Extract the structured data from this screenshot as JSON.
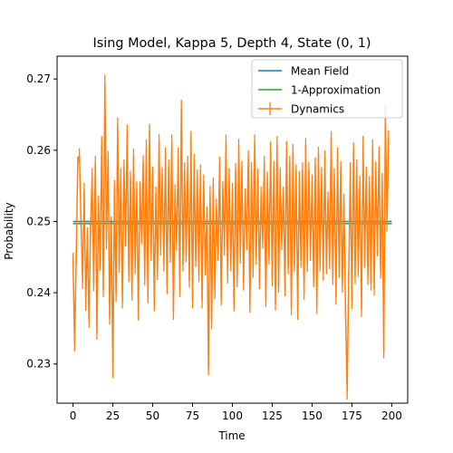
{
  "chart_data": {
    "type": "line",
    "title": "Ising Model, Kappa 5, Depth 4, State (0, 1)",
    "xlabel": "Time",
    "ylabel": "Probability",
    "xlim": [
      -10,
      210
    ],
    "ylim": [
      0.2245,
      0.2732
    ],
    "xticks": [
      0,
      25,
      50,
      75,
      100,
      125,
      150,
      175,
      200
    ],
    "yticks": [
      0.23,
      0.24,
      0.25,
      0.26,
      0.27
    ],
    "yticks_labels": [
      "0.23",
      "0.24",
      "0.25",
      "0.26",
      "0.27"
    ],
    "grid": false,
    "legend_position": "top-right",
    "series": [
      {
        "name": "Mean Field",
        "type": "line",
        "color": "#1f77b4",
        "x": [
          0,
          200
        ],
        "y": [
          0.25,
          0.25
        ]
      },
      {
        "name": "1-Approximation",
        "type": "line",
        "color": "#2ca02c",
        "x": [
          0,
          200
        ],
        "y": [
          0.2497,
          0.2497
        ]
      },
      {
        "name": "Dynamics",
        "type": "errorbar",
        "color": "#ff7f0e",
        "x_start": 0,
        "x_step": 1,
        "err": 0.001,
        "y": [
          0.2446,
          0.2328,
          0.2449,
          0.2581,
          0.2593,
          0.2503,
          0.2415,
          0.2544,
          0.2385,
          0.2482,
          0.2361,
          0.2488,
          0.2565,
          0.2412,
          0.2582,
          0.2344,
          0.2526,
          0.2441,
          0.261,
          0.2404,
          0.2696,
          0.2471,
          0.2589,
          0.2365,
          0.2497,
          0.229,
          0.2548,
          0.2397,
          0.2636,
          0.2438,
          0.2565,
          0.2388,
          0.2577,
          0.2475,
          0.2626,
          0.2425,
          0.2561,
          0.2399,
          0.2592,
          0.2436,
          0.2546,
          0.2371,
          0.2546,
          0.2478,
          0.2583,
          0.242,
          0.2605,
          0.2395,
          0.2627,
          0.2455,
          0.2567,
          0.2384,
          0.2539,
          0.2428,
          0.2613,
          0.2462,
          0.2566,
          0.244,
          0.2594,
          0.2408,
          0.2577,
          0.2452,
          0.2612,
          0.2372,
          0.2542,
          0.2469,
          0.2594,
          0.2404,
          0.2661,
          0.244,
          0.2573,
          0.2453,
          0.2582,
          0.2417,
          0.2617,
          0.2388,
          0.2585,
          0.2446,
          0.2563,
          0.2425,
          0.257,
          0.2388,
          0.2556,
          0.2434,
          0.2511,
          0.2294,
          0.254,
          0.2359,
          0.2552,
          0.2401,
          0.2522,
          0.2455,
          0.2581,
          0.2392,
          0.2547,
          0.2462,
          0.2612,
          0.2423,
          0.2565,
          0.244,
          0.2544,
          0.2384,
          0.2572,
          0.2418,
          0.2606,
          0.2451,
          0.2575,
          0.2413,
          0.2536,
          0.247,
          0.259,
          0.2382,
          0.2573,
          0.2431,
          0.2612,
          0.2449,
          0.2564,
          0.2415,
          0.2539,
          0.2472,
          0.2582,
          0.239,
          0.256,
          0.245,
          0.2602,
          0.2419,
          0.2575,
          0.2385,
          0.261,
          0.241,
          0.2566,
          0.247,
          0.2539,
          0.2405,
          0.2603,
          0.2436,
          0.2582,
          0.2378,
          0.2599,
          0.244,
          0.257,
          0.2372,
          0.2561,
          0.2445,
          0.2573,
          0.24,
          0.2607,
          0.2439,
          0.2573,
          0.2455,
          0.2556,
          0.2418,
          0.258,
          0.238,
          0.2595,
          0.244,
          0.2566,
          0.2427,
          0.259,
          0.2436,
          0.2532,
          0.2443,
          0.2617,
          0.2421,
          0.2565,
          0.2393,
          0.2594,
          0.2431,
          0.2575,
          0.241,
          0.2529,
          0.2375,
          0.226,
          0.2422,
          0.2573,
          0.2387,
          0.2601,
          0.2422,
          0.2577,
          0.2432,
          0.2554,
          0.2376,
          0.261,
          0.2445,
          0.2567,
          0.2421,
          0.2554,
          0.2413,
          0.2605,
          0.2406,
          0.2574,
          0.2461,
          0.2595,
          0.243,
          0.2558,
          0.2318,
          0.2653,
          0.2496,
          0.2618
        ]
      }
    ]
  }
}
